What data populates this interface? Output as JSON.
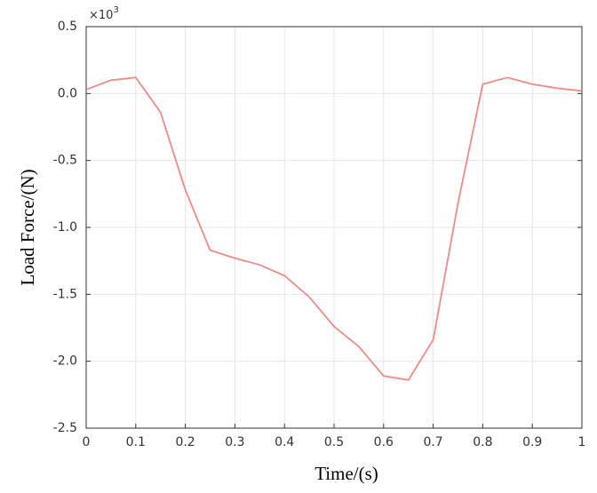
{
  "chart_data": {
    "type": "line",
    "xlabel": "Time/(s)",
    "ylabel": "Load Force/(N)",
    "y_multiplier": {
      "base": "×10",
      "exponent": "3"
    },
    "x": [
      0,
      0.05,
      0.1,
      0.15,
      0.2,
      0.25,
      0.3,
      0.35,
      0.4,
      0.45,
      0.5,
      0.55,
      0.6,
      0.65,
      0.7,
      0.75,
      0.8,
      0.85,
      0.9,
      0.95,
      1.0
    ],
    "values": [
      0.03,
      0.1,
      0.12,
      -0.14,
      -0.72,
      -1.17,
      -1.23,
      -1.28,
      -1.36,
      -1.52,
      -1.74,
      -1.89,
      -2.11,
      -2.14,
      -1.84,
      -0.82,
      0.07,
      0.12,
      0.07,
      0.04,
      0.02
    ],
    "color": "#ee8a88",
    "xlim": [
      0,
      1
    ],
    "xticks": [
      0,
      0.1,
      0.2,
      0.3,
      0.4,
      0.5,
      0.6,
      0.7,
      0.8,
      0.9,
      1
    ],
    "ylim": [
      -2.5,
      0.5
    ],
    "yticks": [
      -2.5,
      {
        "value": -2,
        "label": "-2.0"
      },
      -1.5,
      {
        "value": -1,
        "label": "-1.0"
      },
      -0.5,
      {
        "value": 0,
        "label": "0.0"
      },
      0.5
    ],
    "grid": true
  }
}
